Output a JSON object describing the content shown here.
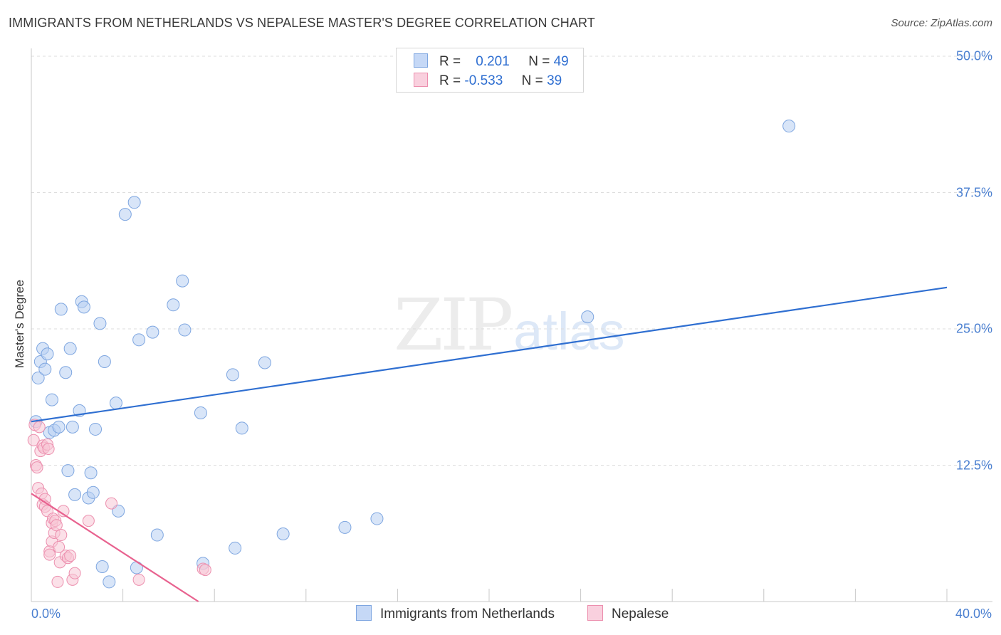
{
  "header": {
    "title": "IMMIGRANTS FROM NETHERLANDS VS NEPALESE MASTER'S DEGREE CORRELATION CHART",
    "source": "Source: ZipAtlas.com"
  },
  "watermark": {
    "zip": "ZIP",
    "atlas": "atlas"
  },
  "legend": {
    "rows": [
      {
        "r_label": "R =",
        "r_value": " 0.201",
        "n_label": "N =",
        "n_value": "49",
        "color": "#a9c4f0"
      },
      {
        "r_label": "R =",
        "r_value": "-0.533",
        "n_label": "N =",
        "n_value": "39",
        "color": "#f4b6cb"
      }
    ]
  },
  "bottom_legend": {
    "series1": "Immigrants from Netherlands",
    "series2": "Nepalese"
  },
  "colors": {
    "blue_fill": "#b8cff2",
    "blue_stroke": "#7ea6e0",
    "blue_line": "#2f6fd1",
    "pink_fill": "#f7c6d6",
    "pink_stroke": "#ec8fae",
    "pink_line": "#e8628f",
    "grid": "#dddddd",
    "axis": "#c8c8c8",
    "tick_text": "#4a7fd0"
  },
  "chart_data": {
    "type": "scatter",
    "title": "IMMIGRANTS FROM NETHERLANDS VS NEPALESE MASTER'S DEGREE CORRELATION CHART",
    "xlabel": "",
    "ylabel": "Master's Degree",
    "xlim": [
      0,
      40
    ],
    "ylim": [
      0,
      50
    ],
    "x_tick_labels": [
      "0.0%",
      "40.0%"
    ],
    "y_ticks": [
      12.5,
      25.0,
      37.5,
      50.0
    ],
    "y_tick_labels": [
      "12.5%",
      "25.0%",
      "37.5%",
      "50.0%"
    ],
    "grid": true,
    "legend_position": "top-center",
    "series": [
      {
        "name": "Immigrants from Netherlands",
        "r": 0.201,
        "n": 49,
        "trend": [
          [
            0,
            16.5
          ],
          [
            40,
            28.8
          ]
        ],
        "points": [
          [
            0.2,
            16.5
          ],
          [
            0.3,
            20.5
          ],
          [
            0.4,
            22.0
          ],
          [
            0.5,
            23.2
          ],
          [
            0.6,
            21.3
          ],
          [
            0.7,
            22.7
          ],
          [
            0.8,
            15.5
          ],
          [
            0.9,
            18.5
          ],
          [
            1.0,
            15.7
          ],
          [
            1.2,
            16.0
          ],
          [
            1.3,
            26.8
          ],
          [
            1.5,
            21.0
          ],
          [
            1.6,
            12.0
          ],
          [
            1.7,
            23.2
          ],
          [
            1.8,
            16.0
          ],
          [
            1.9,
            9.8
          ],
          [
            2.1,
            17.5
          ],
          [
            2.2,
            27.5
          ],
          [
            2.3,
            27.0
          ],
          [
            2.5,
            9.5
          ],
          [
            2.6,
            11.8
          ],
          [
            2.7,
            10.0
          ],
          [
            2.8,
            15.8
          ],
          [
            3.0,
            25.5
          ],
          [
            3.1,
            3.2
          ],
          [
            3.2,
            22.0
          ],
          [
            3.4,
            1.8
          ],
          [
            3.7,
            18.2
          ],
          [
            3.8,
            8.3
          ],
          [
            4.1,
            35.5
          ],
          [
            4.5,
            36.6
          ],
          [
            4.6,
            3.1
          ],
          [
            4.7,
            24.0
          ],
          [
            5.3,
            24.7
          ],
          [
            5.5,
            6.1
          ],
          [
            6.2,
            27.2
          ],
          [
            6.6,
            29.4
          ],
          [
            6.7,
            24.9
          ],
          [
            7.4,
            17.3
          ],
          [
            7.5,
            3.5
          ],
          [
            8.8,
            20.8
          ],
          [
            8.9,
            4.9
          ],
          [
            9.2,
            15.9
          ],
          [
            10.2,
            21.9
          ],
          [
            11.0,
            6.2
          ],
          [
            13.7,
            6.8
          ],
          [
            15.1,
            7.6
          ],
          [
            24.3,
            26.1
          ],
          [
            33.1,
            43.6
          ]
        ]
      },
      {
        "name": "Nepalese",
        "r": -0.533,
        "n": 39,
        "trend": [
          [
            0,
            9.9
          ],
          [
            7.3,
            0
          ]
        ],
        "points": [
          [
            0.1,
            14.8
          ],
          [
            0.15,
            16.2
          ],
          [
            0.2,
            12.5
          ],
          [
            0.25,
            12.3
          ],
          [
            0.3,
            10.4
          ],
          [
            0.35,
            16.0
          ],
          [
            0.4,
            13.8
          ],
          [
            0.45,
            9.9
          ],
          [
            0.5,
            14.3
          ],
          [
            0.5,
            8.9
          ],
          [
            0.55,
            14.1
          ],
          [
            0.6,
            9.4
          ],
          [
            0.6,
            8.7
          ],
          [
            0.7,
            14.4
          ],
          [
            0.7,
            8.3
          ],
          [
            0.75,
            14.0
          ],
          [
            0.8,
            4.6
          ],
          [
            0.8,
            4.3
          ],
          [
            0.9,
            5.5
          ],
          [
            0.9,
            7.2
          ],
          [
            0.95,
            7.6
          ],
          [
            1.0,
            6.3
          ],
          [
            1.05,
            7.4
          ],
          [
            1.1,
            7.0
          ],
          [
            1.15,
            1.8
          ],
          [
            1.2,
            5.0
          ],
          [
            1.25,
            3.6
          ],
          [
            1.3,
            6.1
          ],
          [
            1.4,
            8.3
          ],
          [
            1.5,
            4.2
          ],
          [
            1.6,
            4.0
          ],
          [
            1.7,
            4.2
          ],
          [
            1.8,
            2.0
          ],
          [
            1.9,
            2.6
          ],
          [
            2.5,
            7.4
          ],
          [
            3.5,
            9.0
          ],
          [
            4.7,
            2.0
          ],
          [
            7.5,
            3.0
          ],
          [
            7.6,
            2.9
          ]
        ]
      }
    ]
  }
}
